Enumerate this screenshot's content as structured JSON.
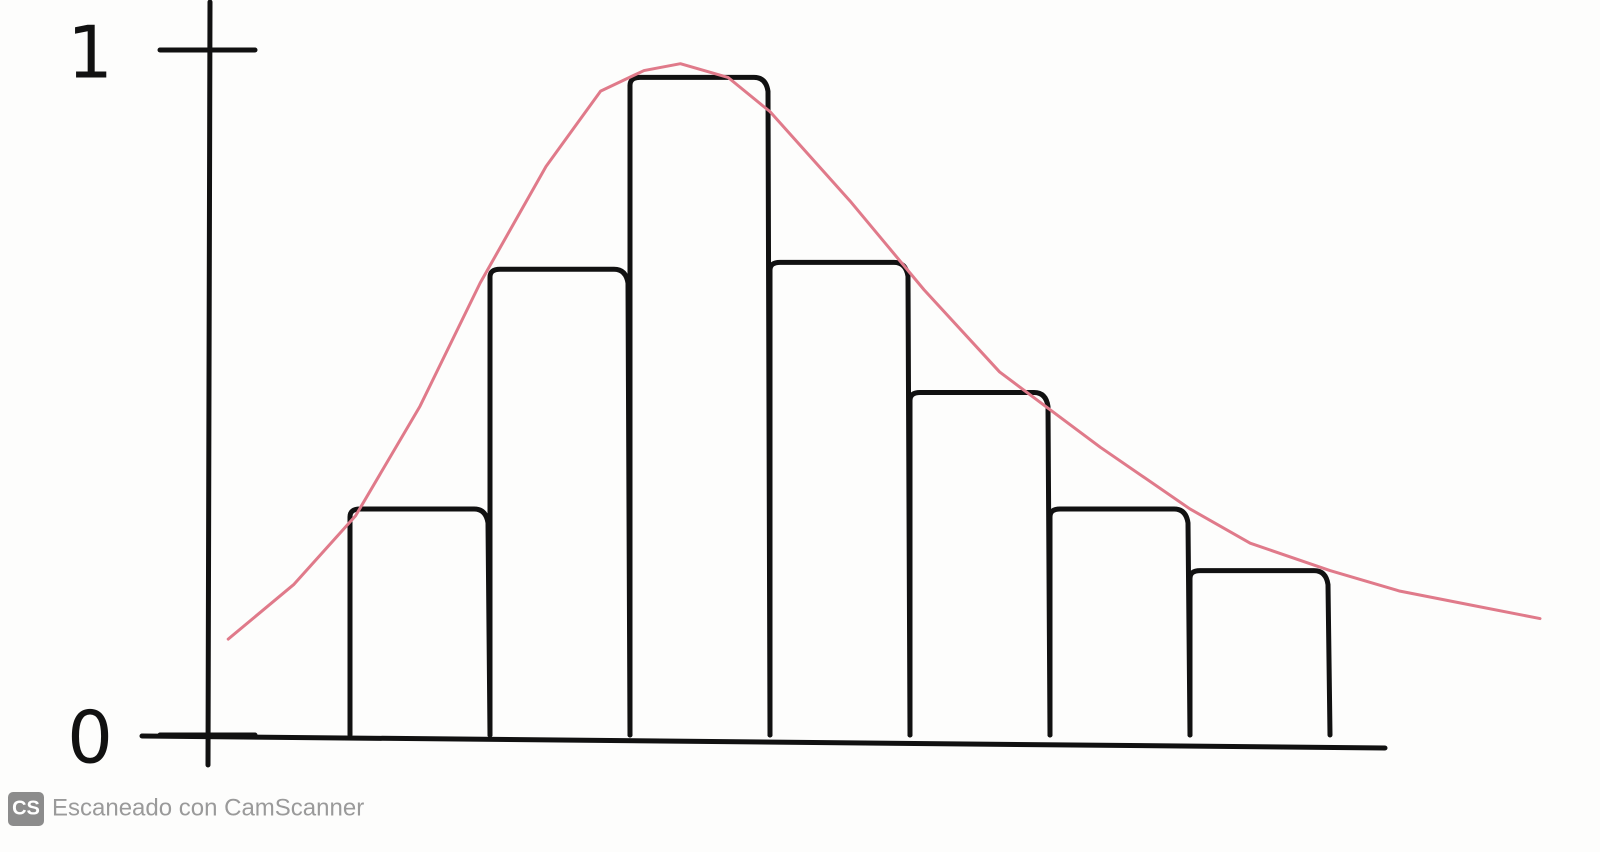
{
  "chart_data": {
    "type": "histogram",
    "bins": [
      1,
      2,
      3,
      4,
      5,
      6,
      7,
      8
    ],
    "values": [
      0.33,
      0.68,
      0.96,
      0.69,
      0.5,
      0.33,
      0.24
    ],
    "color": "#111111",
    "curve": {
      "color": "#e07a8a",
      "x": [
        0.13,
        0.6,
        1.04,
        1.5,
        1.93,
        2.4,
        2.79,
        3.1,
        3.36,
        3.7,
        4.0,
        4.57,
        5.1,
        5.64,
        6.36,
        7.0,
        7.43,
        8.0,
        8.5,
        9.0,
        9.5
      ],
      "values": [
        0.14,
        0.22,
        0.32,
        0.48,
        0.66,
        0.83,
        0.94,
        0.97,
        0.98,
        0.96,
        0.91,
        0.78,
        0.65,
        0.53,
        0.42,
        0.33,
        0.28,
        0.24,
        0.21,
        0.19,
        0.17
      ]
    },
    "xlim": [
      0,
      9.5
    ],
    "ylim": [
      0,
      1
    ],
    "yticks": [
      0,
      1
    ],
    "watermark": {
      "logo": "CS",
      "text": "Escaneado con CamScanner"
    }
  }
}
